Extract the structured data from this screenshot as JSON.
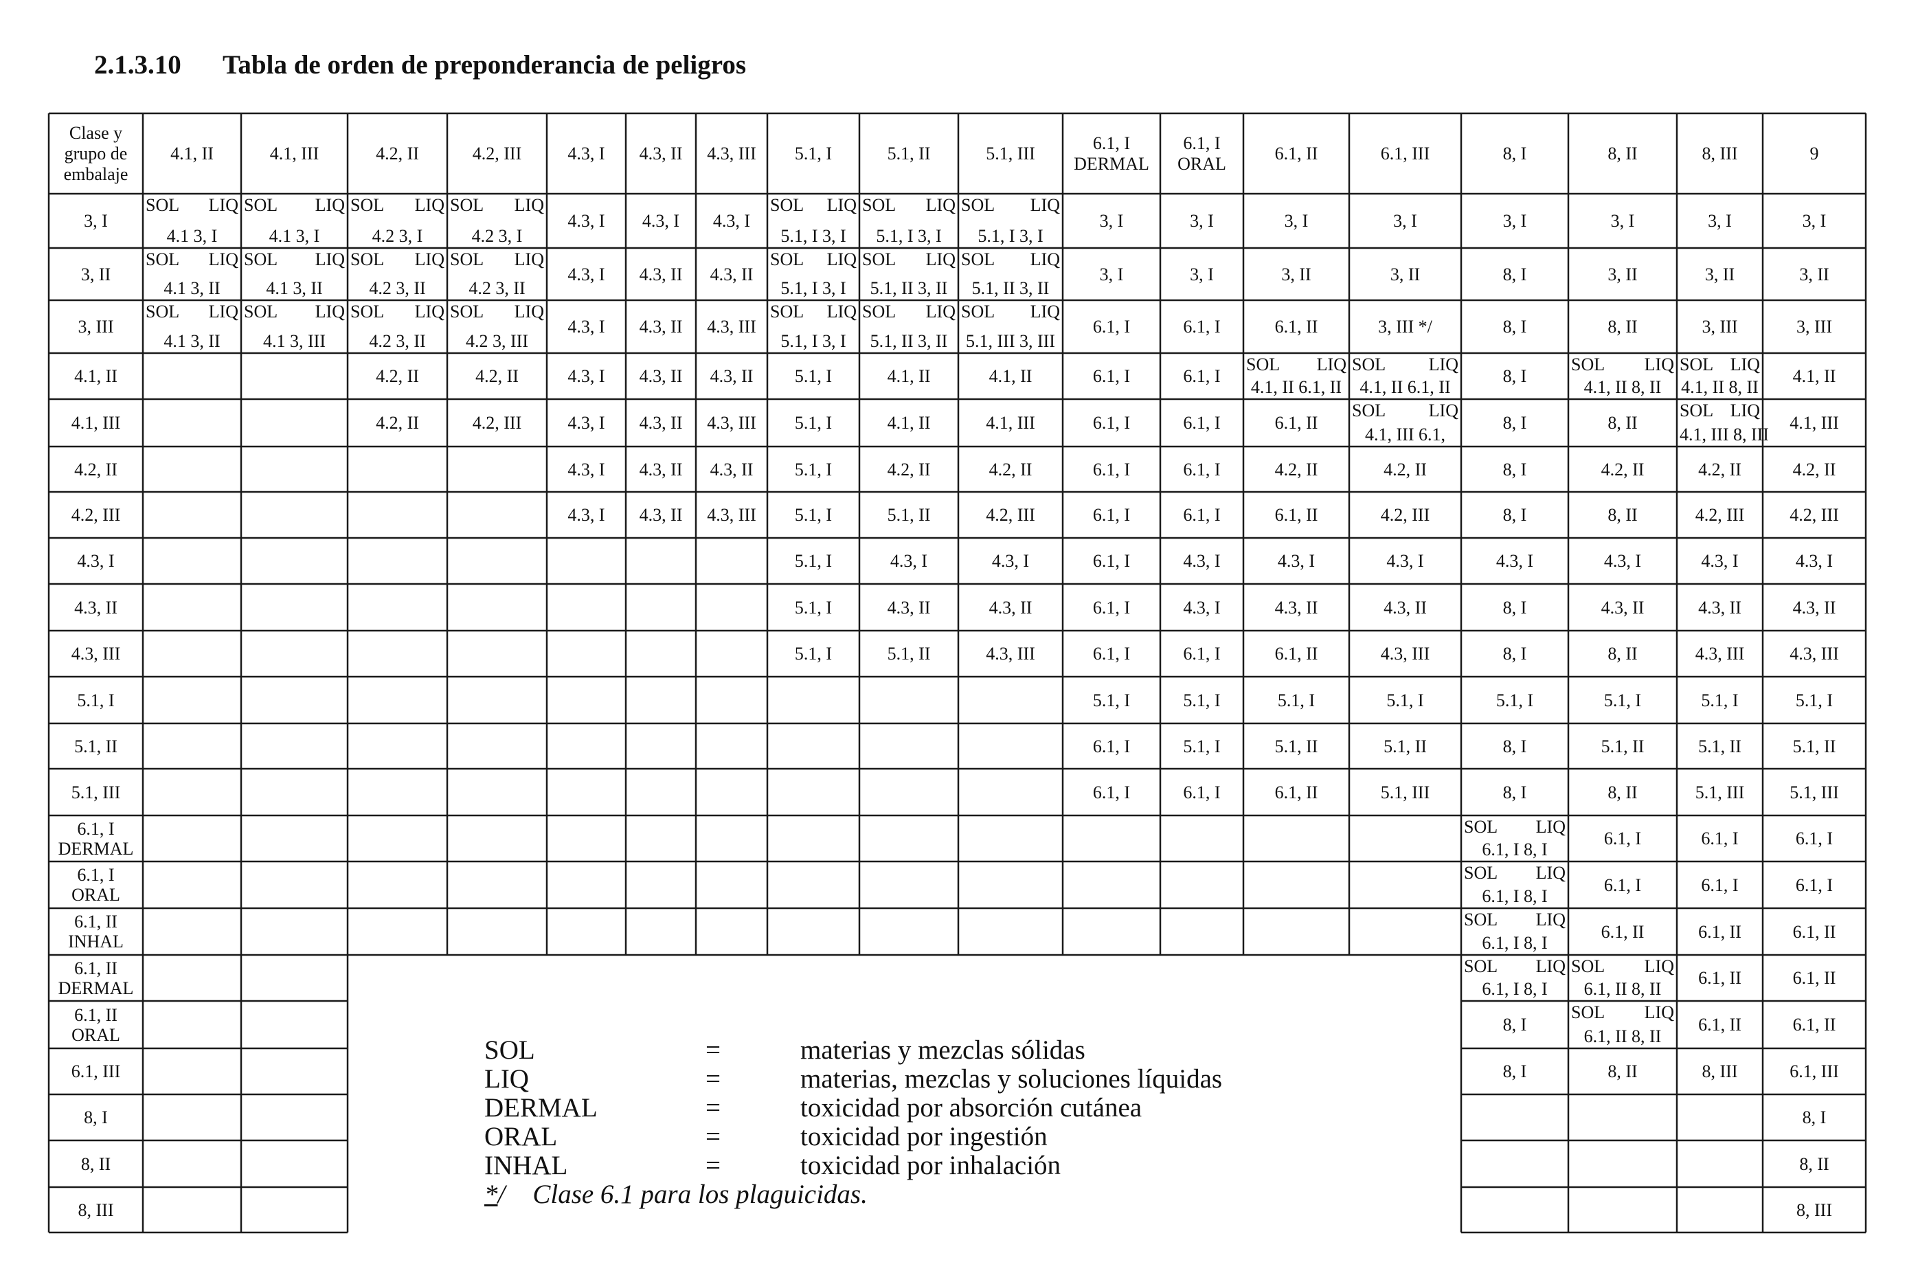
{
  "heading": {
    "number": "2.1.3.10",
    "title": "Tabla de orden de preponderancia de peligros"
  },
  "table": {
    "corner_label": [
      "Clase y",
      "grupo de",
      "embalaje"
    ],
    "column_headers": [
      "4.1, II",
      "4.1, III",
      "4.2, II",
      "4.2, III",
      "4.3, I",
      "4.3, II",
      "4.3, III",
      "5.1, I",
      "5.1, II",
      "5.1, III",
      "6.1, I\nDERMAL",
      "6.1, I\nORAL",
      "6.1, II",
      "6.1, III",
      "8, I",
      "8, II",
      "8, III",
      "9"
    ],
    "rows": [
      {
        "label": "3, I",
        "cells": [
          {
            "sol": "SOL",
            "liq": "LIQ",
            "line2": "4.1  3, I"
          },
          {
            "sol": "SOL",
            "liq": "LIQ",
            "line2": "4.1  3, I"
          },
          {
            "sol": "SOL",
            "liq": "LIQ",
            "line2": "4.2  3, I"
          },
          {
            "sol": "SOL",
            "liq": "LIQ",
            "line2": "4.2  3, I"
          },
          "4.3, I",
          "4.3, I",
          "4.3, I",
          {
            "sol": "SOL",
            "liq": "LIQ",
            "line2": "5.1, I 3, I"
          },
          {
            "sol": "SOL",
            "liq": "LIQ",
            "line2": "5.1, I 3, I"
          },
          {
            "sol": "SOL",
            "liq": "LIQ",
            "line2": "5.1, I 3, I"
          },
          "3, I",
          "3, I",
          "3, I",
          "3, I",
          "3, I",
          "3, I",
          "3, I",
          "3, I"
        ]
      },
      {
        "label": "3, II",
        "cells": [
          {
            "sol": "SOL",
            "liq": "LIQ",
            "line2": "4.1  3, II"
          },
          {
            "sol": "SOL",
            "liq": "LIQ",
            "line2": "4.1  3, II"
          },
          {
            "sol": "SOL",
            "liq": "LIQ",
            "line2": "4.2  3, II"
          },
          {
            "sol": "SOL",
            "liq": "LIQ",
            "line2": "4.2  3, II"
          },
          "4.3, I",
          "4.3, II",
          "4.3, II",
          {
            "sol": "SOL",
            "liq": "LIQ",
            "line2": "5.1, I 3, I"
          },
          {
            "sol": "SOL",
            "liq": "LIQ",
            "line2": "5.1, II 3, II"
          },
          {
            "sol": "SOL",
            "liq": "LIQ",
            "line2": "5.1, II 3, II"
          },
          "3, I",
          "3, I",
          "3, II",
          "3, II",
          "8, I",
          "3, II",
          "3, II",
          "3, II"
        ]
      },
      {
        "label": "3, III",
        "cells": [
          {
            "sol": "SOL",
            "liq": "LIQ",
            "line2": "4.1  3, II"
          },
          {
            "sol": "SOL",
            "liq": "LIQ",
            "line2": "4.1  3, III"
          },
          {
            "sol": "SOL",
            "liq": "LIQ",
            "line2": "4.2  3, II"
          },
          {
            "sol": "SOL",
            "liq": "LIQ",
            "line2": "4.2  3, III"
          },
          "4.3, I",
          "4.3, II",
          "4.3, III",
          {
            "sol": "SOL",
            "liq": "LIQ",
            "line2": "5.1, I 3, I"
          },
          {
            "sol": "SOL",
            "liq": "LIQ",
            "line2": "5.1, II 3, II"
          },
          {
            "sol": "SOL",
            "liq": "LIQ",
            "line2": "5.1, III 3, III"
          },
          "6.1, I",
          "6.1, I",
          "6.1, II",
          "3, III */",
          "8, I",
          "8, II",
          "3, III",
          "3, III"
        ]
      },
      {
        "label": "4.1, II",
        "cells": [
          "",
          "",
          "4.2, II",
          "4.2, II",
          "4.3, I",
          "4.3, II",
          "4.3, II",
          "5.1, I",
          "4.1, II",
          "4.1, II",
          "6.1, I",
          "6.1, I",
          {
            "sol": "SOL",
            "liq": "LIQ",
            "line2": "4.1, II 6.1, II"
          },
          {
            "sol": "SOL",
            "liq": "LIQ",
            "line2": "4.1, II 6.1, II"
          },
          "8, I",
          {
            "sol": "SOL",
            "liq": "LIQ",
            "line2": "4.1, II 8, II"
          },
          {
            "sol": "SOL",
            "liq": "LIQ",
            "line2": "4.1, II 8, II"
          },
          "4.1, II"
        ]
      },
      {
        "label": "4.1, III",
        "cells": [
          "",
          "",
          "4.2, II",
          "4.2, III",
          "4.3, I",
          "4.3, II",
          "4.3, III",
          "5.1, I",
          "4.1, II",
          "4.1, III",
          "6.1, I",
          "6.1, I",
          "6.1, II",
          {
            "sol": "SOL",
            "liq": "LIQ",
            "line2": "4.1, III 6.1,"
          },
          "8, I",
          "8, II",
          {
            "sol": "SOL",
            "liq": "LIQ",
            "line2": "4.1, III 8, III"
          },
          "4.1, III"
        ]
      },
      {
        "label": "4.2, II",
        "cells": [
          "",
          "",
          "",
          "",
          "4.3, I",
          "4.3, II",
          "4.3, II",
          "5.1, I",
          "4.2, II",
          "4.2, II",
          "6.1, I",
          "6.1, I",
          "4.2, II",
          "4.2, II",
          "8, I",
          "4.2, II",
          "4.2, II",
          "4.2, II"
        ]
      },
      {
        "label": "4.2, III",
        "cells": [
          "",
          "",
          "",
          "",
          "4.3, I",
          "4.3, II",
          "4.3, III",
          "5.1, I",
          "5.1, II",
          "4.2, III",
          "6.1, I",
          "6.1, I",
          "6.1, II",
          "4.2, III",
          "8, I",
          "8, II",
          "4.2, III",
          "4.2, III"
        ]
      },
      {
        "label": "4.3, I",
        "cells": [
          "",
          "",
          "",
          "",
          "",
          "",
          "",
          "5.1, I",
          "4.3, I",
          "4.3, I",
          "6.1, I",
          "4.3, I",
          "4.3, I",
          "4.3, I",
          "4.3, I",
          "4.3, I",
          "4.3, I",
          "4.3, I"
        ]
      },
      {
        "label": "4.3, II",
        "cells": [
          "",
          "",
          "",
          "",
          "",
          "",
          "",
          "5.1, I",
          "4.3, II",
          "4.3, II",
          "6.1, I",
          "4.3, I",
          "4.3, II",
          "4.3, II",
          "8, I",
          "4.3, II",
          "4.3, II",
          "4.3, II"
        ]
      },
      {
        "label": "4.3, III",
        "cells": [
          "",
          "",
          "",
          "",
          "",
          "",
          "",
          "5.1, I",
          "5.1, II",
          "4.3, III",
          "6.1, I",
          "6.1, I",
          "6.1, II",
          "4.3, III",
          "8, I",
          "8, II",
          "4.3, III",
          "4.3, III"
        ]
      },
      {
        "label": "5.1, I",
        "cells": [
          "",
          "",
          "",
          "",
          "",
          "",
          "",
          "",
          "",
          "",
          "5.1, I",
          "5.1, I",
          "5.1, I",
          "5.1, I",
          "5.1, I",
          "5.1, I",
          "5.1, I",
          "5.1, I"
        ]
      },
      {
        "label": "5.1, II",
        "cells": [
          "",
          "",
          "",
          "",
          "",
          "",
          "",
          "",
          "",
          "",
          "6.1, I",
          "5.1, I",
          "5.1, II",
          "5.1, II",
          "8, I",
          "5.1, II",
          "5.1, II",
          "5.1, II"
        ]
      },
      {
        "label": "5.1, III",
        "cells": [
          "",
          "",
          "",
          "",
          "",
          "",
          "",
          "",
          "",
          "",
          "6.1, I",
          "6.1, I",
          "6.1, II",
          "5.1, III",
          "8, I",
          "8, II",
          "5.1, III",
          "5.1, III"
        ]
      },
      {
        "label": "6.1, I\nDERMAL",
        "cells": [
          "",
          "",
          "",
          "",
          "",
          "",
          "",
          "",
          "",
          "",
          "",
          "",
          "",
          "",
          {
            "sol": "SOL",
            "liq": "LIQ",
            "line2": "6.1, I 8, I"
          },
          "6.1, I",
          "6.1, I",
          "6.1, I"
        ]
      },
      {
        "label": "6.1, I\nORAL",
        "cells": [
          "",
          "",
          "",
          "",
          "",
          "",
          "",
          "",
          "",
          "",
          "",
          "",
          "",
          "",
          {
            "sol": "SOL",
            "liq": "LIQ",
            "line2": "6.1, I 8, I"
          },
          "6.1, I",
          "6.1, I",
          "6.1, I"
        ]
      },
      {
        "label": "6.1, II\nINHAL",
        "cells": [
          "",
          "",
          "",
          "",
          "",
          "",
          "",
          "",
          "",
          "",
          "",
          "",
          "",
          "",
          {
            "sol": "SOL",
            "liq": "LIQ",
            "line2": "6.1, I 8, I"
          },
          "6.1, II",
          "6.1, II",
          "6.1, II"
        ]
      },
      {
        "label": "6.1, II\nDERMAL",
        "cells": [
          "",
          "",
          "",
          "",
          "",
          "",
          "",
          "",
          "",
          "",
          "",
          "",
          "",
          "",
          {
            "sol": "SOL",
            "liq": "LIQ",
            "line2": "6.1, I 8, I"
          },
          {
            "sol": "SOL",
            "liq": "LIQ",
            "line2": "6.1, II 8, II"
          },
          "6.1, II",
          "6.1, II"
        ]
      },
      {
        "label": "6.1, II\nORAL",
        "cells": [
          "",
          "",
          "",
          "",
          "",
          "",
          "",
          "",
          "",
          "",
          "",
          "",
          "",
          "",
          "8, I",
          {
            "sol": "SOL",
            "liq": "LIQ",
            "line2": "6.1, II 8, II"
          },
          "6.1, II",
          "6.1, II"
        ]
      },
      {
        "label": "6.1, III",
        "cells": [
          "",
          "",
          "",
          "",
          "",
          "",
          "",
          "",
          "",
          "",
          "",
          "",
          "",
          "",
          "8, I",
          "8, II",
          "8, III",
          "6.1, III"
        ]
      },
      {
        "label": "8, I",
        "cells": [
          "",
          "",
          "",
          "",
          "",
          "",
          "",
          "",
          "",
          "",
          "",
          "",
          "",
          "",
          "",
          "",
          "",
          "8, I"
        ]
      },
      {
        "label": "8, II",
        "cells": [
          "",
          "",
          "",
          "",
          "",
          "",
          "",
          "",
          "",
          "",
          "",
          "",
          "",
          "",
          "",
          "",
          "",
          "8, II"
        ]
      },
      {
        "label": "8, III",
        "cells": [
          "",
          "",
          "",
          "",
          "",
          "",
          "",
          "",
          "",
          "",
          "",
          "",
          "",
          "",
          "",
          "",
          "",
          "8, III"
        ]
      }
    ]
  },
  "legend": {
    "items": [
      {
        "abbr": "SOL",
        "eq": "=",
        "desc": "materias y mezclas sólidas"
      },
      {
        "abbr": "LIQ",
        "eq": "=",
        "desc": "materias, mezclas y soluciones líquidas"
      },
      {
        "abbr": "DERMAL",
        "eq": "=",
        "desc": "toxicidad por absorción cutánea"
      },
      {
        "abbr": "ORAL",
        "eq": "=",
        "desc": "toxicidad por ingestión"
      },
      {
        "abbr": "INHAL",
        "eq": "=",
        "desc": "toxicidad por inhalación"
      }
    ],
    "footnote_mark": "*",
    "footnote_slash": "/",
    "footnote_text": "Clase 6.1 para los plaguicidas."
  }
}
